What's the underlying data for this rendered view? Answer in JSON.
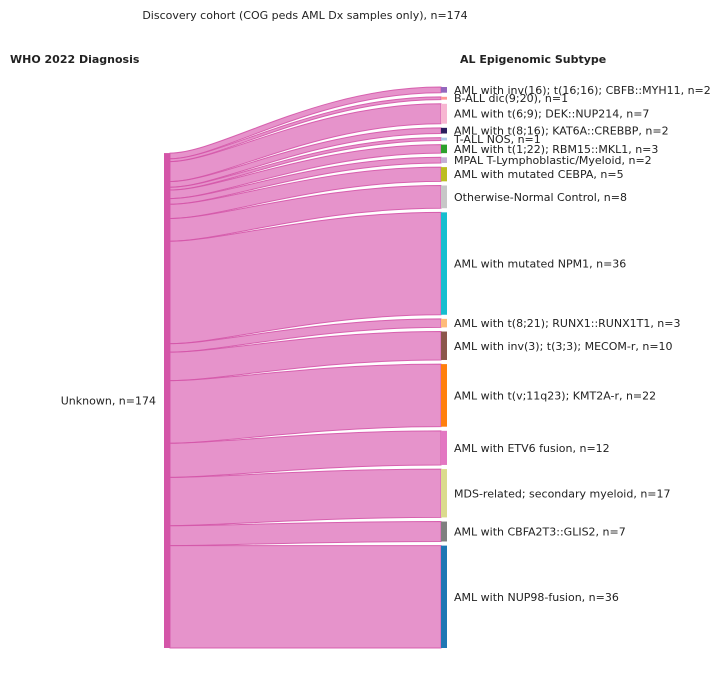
{
  "chart_data": {
    "type": "sankey",
    "title": "Discovery cohort (COG peds AML Dx samples only), n=174",
    "left_header": "WHO 2022 Diagnosis",
    "right_header": "AL Epigenomic Subtype",
    "source": {
      "name": "Unknown",
      "value": 174,
      "label": "Unknown, n=174",
      "color": "#d455a8"
    },
    "link_color": "#e07bbf",
    "targets": [
      {
        "name": "AML with inv(16); t(16;16); CBFB::MYH11",
        "value": 2,
        "label": "AML with inv(16); t(16;16); CBFB::MYH11, n=2",
        "color": "#9467bd"
      },
      {
        "name": "B-ALL dic(9;20)",
        "value": 1,
        "label": "B-ALL dic(9;20), n=1",
        "color": "#ff9896"
      },
      {
        "name": "AML with t(6;9); DEK::NUP214",
        "value": 7,
        "label": "AML with t(6;9); DEK::NUP214, n=7",
        "color": "#f7b6d2"
      },
      {
        "name": "AML with t(8;16); KAT6A::CREBBP",
        "value": 2,
        "label": "AML with t(8;16); KAT6A::CREBBP, n=2",
        "color": "#2b1d5e"
      },
      {
        "name": "T-ALL NOS",
        "value": 1,
        "label": "T-ALL NOS, n=1",
        "color": "#aec7e8"
      },
      {
        "name": "AML with t(1;22); RBM15::MKL1",
        "value": 3,
        "label": "AML with t(1;22); RBM15::MKL1, n=3",
        "color": "#2ca02c"
      },
      {
        "name": "MPAL T-Lymphoblastic/Myeloid",
        "value": 2,
        "label": "MPAL T-Lymphoblastic/Myeloid, n=2",
        "color": "#c5b0d5"
      },
      {
        "name": "AML with mutated CEBPA",
        "value": 5,
        "label": "AML with mutated CEBPA, n=5",
        "color": "#bcbd22"
      },
      {
        "name": "Otherwise-Normal Control",
        "value": 8,
        "label": "Otherwise-Normal Control, n=8",
        "color": "#c7c7c7"
      },
      {
        "name": "AML with mutated NPM1",
        "value": 36,
        "label": "AML with mutated NPM1, n=36",
        "color": "#17becf"
      },
      {
        "name": "AML with t(8;21); RUNX1::RUNX1T1",
        "value": 3,
        "label": "AML with t(8;21); RUNX1::RUNX1T1, n=3",
        "color": "#ffbb78"
      },
      {
        "name": "AML with inv(3); t(3;3); MECOM-r",
        "value": 10,
        "label": "AML with inv(3); t(3;3); MECOM-r, n=10",
        "color": "#8c564b"
      },
      {
        "name": "AML with t(v;11q23); KMT2A-r",
        "value": 22,
        "label": "AML with t(v;11q23); KMT2A-r, n=22",
        "color": "#ff7f0e"
      },
      {
        "name": "AML with ETV6 fusion",
        "value": 12,
        "label": "AML with ETV6 fusion, n=12",
        "color": "#e377c2"
      },
      {
        "name": "MDS-related; secondary myeloid",
        "value": 17,
        "label": "MDS-related; secondary myeloid, n=17",
        "color": "#dbdb8d"
      },
      {
        "name": "AML with CBFA2T3::GLIS2",
        "value": 7,
        "label": "AML with CBFA2T3::GLIS2, n=7",
        "color": "#7f7f7f"
      },
      {
        "name": "AML with NUP98-fusion",
        "value": 36,
        "label": "AML with NUP98-fusion, n=36",
        "color": "#1f77b4"
      }
    ]
  }
}
